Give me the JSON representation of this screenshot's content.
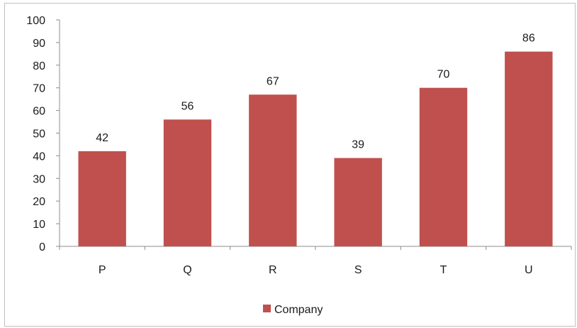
{
  "chart_data": {
    "type": "bar",
    "title": "",
    "xlabel": "",
    "ylabel": "",
    "categories": [
      "P",
      "Q",
      "R",
      "S",
      "T",
      "U"
    ],
    "series": [
      {
        "name": "Company",
        "values": [
          42,
          56,
          67,
          39,
          70,
          86
        ],
        "color": "#c0504d"
      }
    ],
    "ylim": [
      0,
      100
    ],
    "yticks": [
      0,
      10,
      20,
      30,
      40,
      50,
      60,
      70,
      80,
      90,
      100
    ],
    "grid": false,
    "data_labels": true,
    "legend": {
      "position": "bottom",
      "entries": [
        "Company"
      ]
    }
  }
}
